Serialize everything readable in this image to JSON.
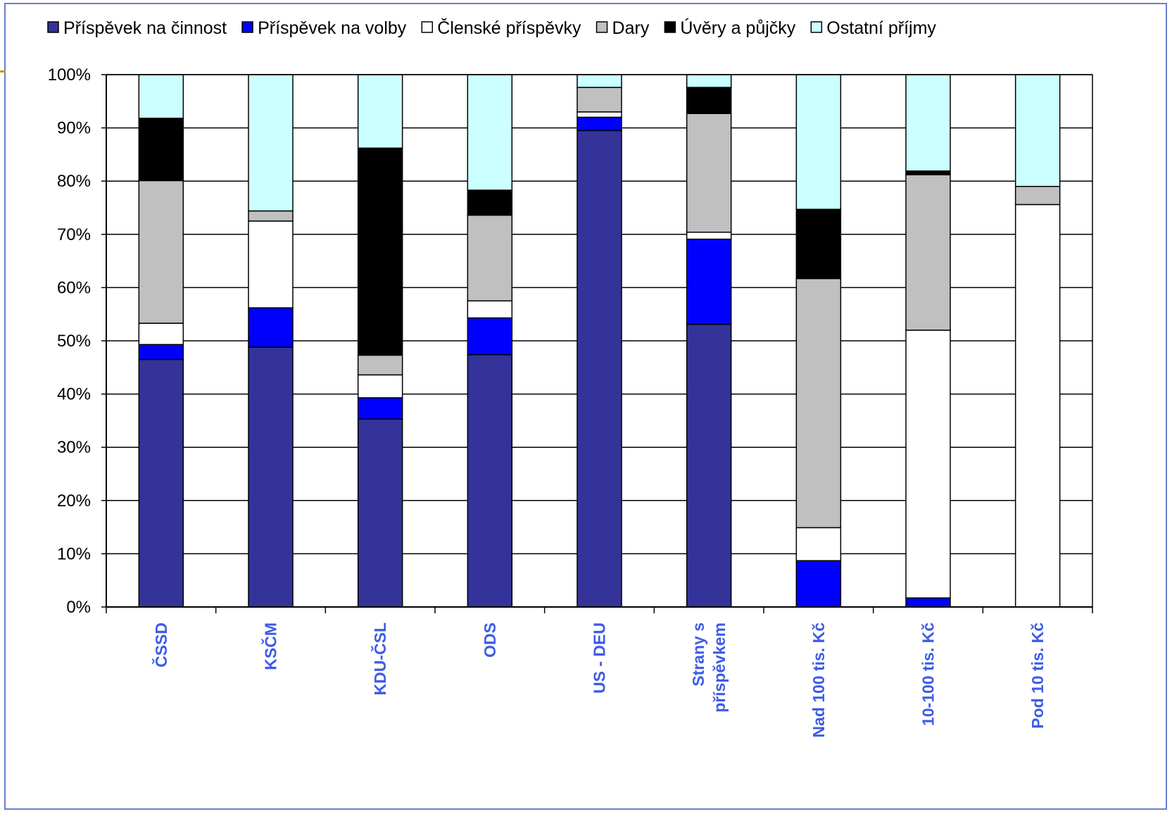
{
  "chart_data": {
    "type": "bar",
    "stacked": true,
    "percent": true,
    "categories": [
      "ČSSD",
      "KSČM",
      "KDU-ČSL",
      "ODS",
      "US - DEU",
      "Strany s příspěvkem",
      "Nad 100 tis. Kč",
      "10-100 tis. Kč",
      "Pod 10 tis. Kč"
    ],
    "category_lines": [
      [
        "ČSSD"
      ],
      [
        "KSČM"
      ],
      [
        "KDU-ČSL"
      ],
      [
        "ODS"
      ],
      [
        "US - DEU"
      ],
      [
        "Strany s",
        "příspěvkem"
      ],
      [
        "Nad 100 tis. Kč"
      ],
      [
        "10-100 tis. Kč"
      ],
      [
        "Pod 10 tis. Kč"
      ]
    ],
    "series": [
      {
        "name": "Příspěvek na činnost",
        "color": "#333399",
        "values": [
          46.5,
          48.8,
          35.3,
          47.4,
          89.5,
          53.1,
          0,
          0,
          0
        ]
      },
      {
        "name": "Příspěvek na volby",
        "color": "#0000ff",
        "values": [
          2.8,
          7.4,
          4.0,
          6.9,
          2.5,
          16.0,
          8.7,
          1.7,
          0
        ]
      },
      {
        "name": "Členské příspěvky",
        "color": "#ffffff",
        "values": [
          4.0,
          16.3,
          4.3,
          3.2,
          1.0,
          1.3,
          6.2,
          50.3,
          75.6
        ]
      },
      {
        "name": "Dary",
        "color": "#c0c0c0",
        "values": [
          26.8,
          1.9,
          3.7,
          16.1,
          4.6,
          22.3,
          46.8,
          29.2,
          3.4
        ]
      },
      {
        "name": "Úvěry a půjčky",
        "color": "#000000",
        "values": [
          11.7,
          0,
          38.9,
          4.7,
          0,
          4.9,
          13.0,
          0.7,
          0
        ]
      },
      {
        "name": "Ostatní příjmy",
        "color": "#ccffff",
        "values": [
          8.2,
          25.6,
          13.8,
          21.7,
          2.4,
          2.4,
          25.3,
          18.1,
          21.0
        ]
      }
    ],
    "yticks": [
      "0%",
      "10%",
      "20%",
      "30%",
      "40%",
      "50%",
      "60%",
      "70%",
      "80%",
      "90%",
      "100%"
    ],
    "ylim": [
      0,
      100
    ],
    "grid": true,
    "legend_position": "top",
    "category_label_color": "#3d5ce6",
    "frame_color": "#6a7fd0"
  }
}
